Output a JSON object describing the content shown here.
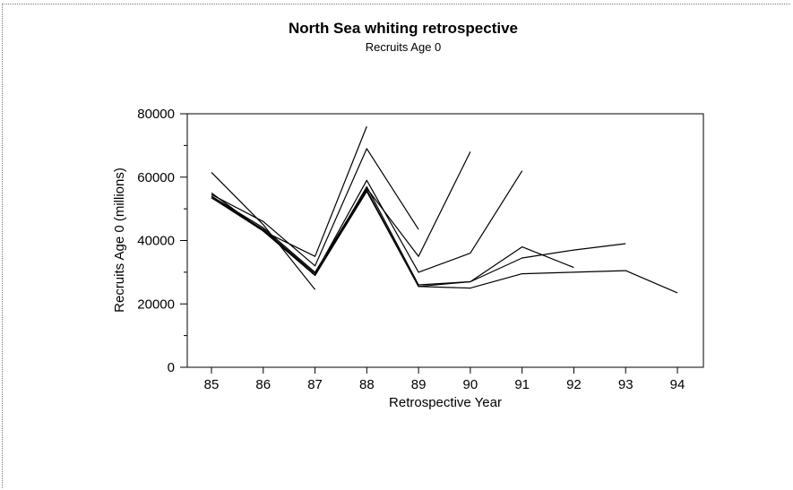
{
  "chart_data": {
    "type": "line",
    "title": "North Sea whiting retrospective",
    "subtitle": "Recruits Age 0",
    "xlabel": "Retrospective Year",
    "ylabel": "Recruits Age 0 (millions)",
    "categories": [
      "85",
      "86",
      "87",
      "88",
      "89",
      "90",
      "91",
      "92",
      "93",
      "94"
    ],
    "xlim": [
      85,
      94
    ],
    "ylim": [
      0,
      80000
    ],
    "yticks": [
      0,
      20000,
      40000,
      60000,
      80000
    ],
    "yticks_labels": [
      "0",
      "20000",
      "40000",
      "60000",
      "80000"
    ],
    "line_color": "#000000",
    "grid": false,
    "series": [
      {
        "x": [
          85,
          86,
          87
        ],
        "values": [
          61500,
          45000,
          24500
        ]
      },
      {
        "x": [
          85,
          86,
          87,
          88
        ],
        "values": [
          55000,
          43000,
          35000,
          76000
        ]
      },
      {
        "x": [
          85,
          86,
          87,
          88,
          89
        ],
        "values": [
          54500,
          46000,
          32000,
          69000,
          43500
        ]
      },
      {
        "x": [
          85,
          86,
          87,
          88,
          89,
          90
        ],
        "values": [
          54000,
          44000,
          30000,
          56500,
          35000,
          68000
        ]
      },
      {
        "x": [
          85,
          86,
          87,
          88,
          89,
          90,
          91
        ],
        "values": [
          53500,
          43500,
          29500,
          59000,
          30000,
          36000,
          62000
        ]
      },
      {
        "x": [
          85,
          86,
          87,
          88,
          89,
          90,
          91,
          92
        ],
        "values": [
          54000,
          43000,
          29000,
          57000,
          26000,
          27000,
          38000,
          31500
        ]
      },
      {
        "x": [
          85,
          86,
          87,
          88,
          89,
          90,
          91,
          92,
          93
        ],
        "values": [
          53500,
          43500,
          29000,
          56000,
          25500,
          27000,
          34500,
          37000,
          39000
        ]
      },
      {
        "x": [
          85,
          86,
          87,
          88,
          89,
          90,
          91,
          92,
          93,
          94
        ],
        "values": [
          53500,
          43000,
          29000,
          55500,
          25500,
          25000,
          29500,
          30000,
          30500,
          23500
        ]
      }
    ]
  }
}
